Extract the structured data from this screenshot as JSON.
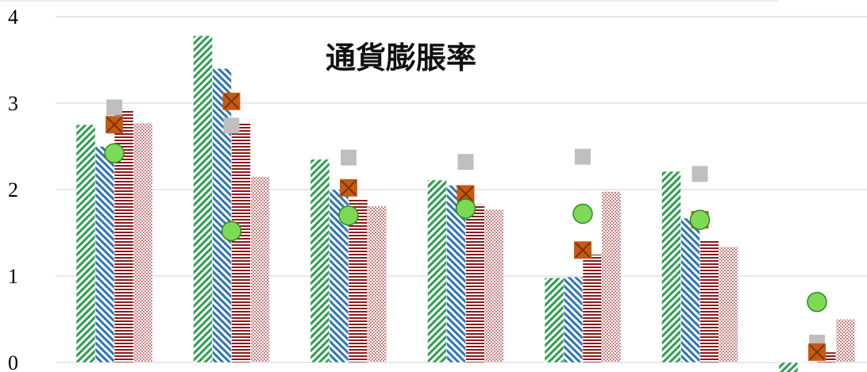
{
  "chart_data": {
    "type": "bar",
    "title": "通貨膨脹率",
    "ylim": [
      0,
      4
    ],
    "yticks": [
      "0",
      "1",
      "2",
      "3",
      "4"
    ],
    "grid": true,
    "categories": [
      "",
      "",
      "",
      "",
      "",
      "",
      ""
    ],
    "bar_series": [
      {
        "color": "#2e9e4f",
        "pattern": "diagonal-stripes",
        "values": [
          2.75,
          3.78,
          2.35,
          2.11,
          0.98,
          2.21,
          -0.12
        ]
      },
      {
        "color": "#2e74b5",
        "pattern": "diagonal-stripes-reverse",
        "values": [
          2.5,
          3.4,
          2.0,
          2.05,
          0.99,
          1.67,
          0.0
        ]
      },
      {
        "color": "#8b1a1a",
        "pattern": "horizontal-lines",
        "values": [
          2.93,
          2.78,
          1.9,
          1.83,
          1.25,
          1.42,
          0.12
        ]
      },
      {
        "color": "#a52a2a",
        "pattern": "dots",
        "values": [
          2.77,
          2.15,
          1.81,
          1.77,
          1.98,
          1.34,
          0.5
        ]
      }
    ],
    "marker_series": [
      {
        "shape": "square",
        "color": "#bfbfbf",
        "values": [
          2.95,
          2.74,
          2.37,
          2.32,
          2.38,
          2.18,
          0.23
        ]
      },
      {
        "shape": "x-square",
        "color": "#c55a11",
        "values": [
          2.75,
          3.02,
          2.02,
          1.95,
          1.3,
          1.65,
          0.12
        ]
      },
      {
        "shape": "circle",
        "color": "#7ed957",
        "values": [
          2.42,
          1.52,
          1.7,
          1.78,
          1.72,
          1.65,
          0.7
        ]
      }
    ]
  }
}
